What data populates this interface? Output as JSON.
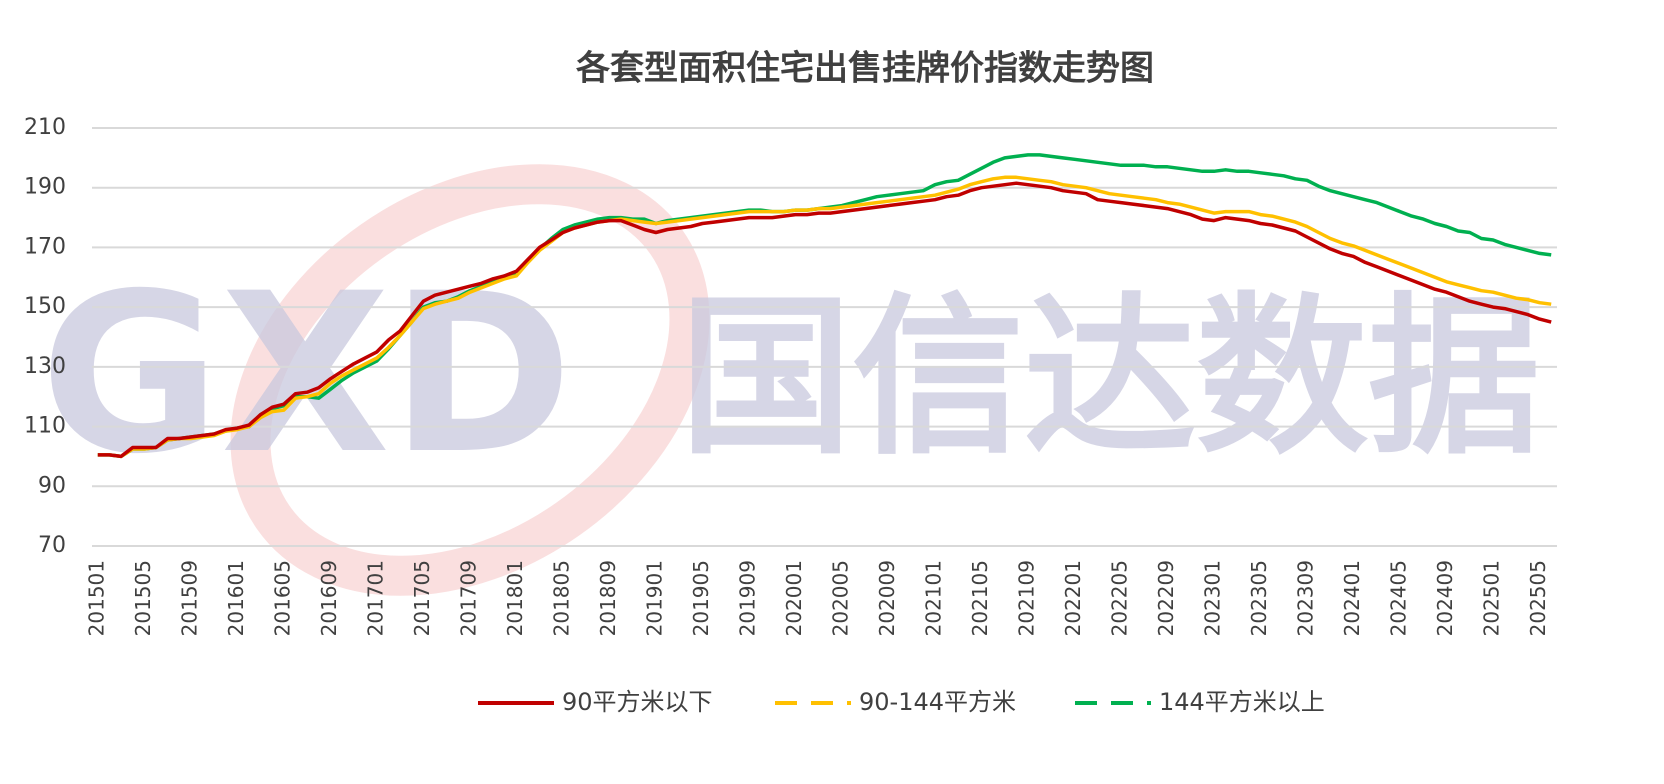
{
  "chart_data": {
    "type": "line",
    "title": "各套型面积住宅出售挂牌价指数走势图",
    "watermark": [
      "GXD",
      "国信达数据"
    ],
    "categories": [
      "201501",
      null,
      null,
      null,
      "201505",
      null,
      null,
      null,
      "201509",
      null,
      null,
      null,
      "201601",
      null,
      null,
      null,
      "201605",
      null,
      null,
      null,
      "201609",
      null,
      null,
      null,
      "201701",
      null,
      null,
      null,
      "201705",
      null,
      null,
      null,
      "201709",
      null,
      null,
      null,
      "201801",
      null,
      null,
      null,
      "201805",
      null,
      null,
      null,
      "201809",
      null,
      null,
      null,
      "201901",
      null,
      null,
      null,
      "201905",
      null,
      null,
      null,
      "201909",
      null,
      null,
      null,
      "202001",
      null,
      null,
      null,
      "202005",
      null,
      null,
      null,
      "202009",
      null,
      null,
      null,
      "202101",
      null,
      null,
      null,
      "202105",
      null,
      null,
      null,
      "202109",
      null,
      null,
      null,
      "202201",
      null,
      null,
      null,
      "202205",
      null,
      null,
      null,
      "202209",
      null,
      null,
      null,
      "202301",
      null,
      null,
      null,
      "202305",
      null,
      null,
      null,
      "202309",
      null,
      null,
      null,
      "202401",
      null,
      null,
      null,
      "202405",
      null,
      null,
      null,
      "202409",
      null,
      null,
      null,
      "202501",
      null,
      null,
      null,
      "202505",
      null
    ],
    "ylim": [
      70,
      210
    ],
    "yticks": [
      70,
      90,
      110,
      130,
      150,
      170,
      190,
      210
    ],
    "grid": true,
    "legend": "bottom",
    "series": [
      {
        "name": "90平方米以下",
        "color": "#c00000",
        "values": [
          100.5,
          100.5,
          100,
          103,
          103,
          103,
          106,
          106,
          106.5,
          107,
          107.5,
          109,
          109.5,
          110.5,
          114,
          116.5,
          117.5,
          121,
          121.5,
          123,
          126,
          128.5,
          131,
          133,
          135,
          139,
          142,
          147,
          152,
          154,
          155,
          156,
          157,
          158,
          159.5,
          160.5,
          162,
          166,
          170,
          172.5,
          175,
          176.5,
          177.5,
          178.5,
          179,
          179,
          177.5,
          176,
          175,
          176,
          176.5,
          177,
          178,
          178.5,
          179,
          179.5,
          180,
          180,
          180,
          180.5,
          181,
          181,
          181.5,
          181.5,
          182,
          182.5,
          183,
          183.5,
          184,
          184.5,
          185,
          185.5,
          186,
          187,
          187.5,
          189,
          190,
          190.5,
          191,
          191.5,
          191,
          190.5,
          190,
          189,
          188.5,
          188,
          186,
          185.5,
          185,
          184.5,
          184,
          183.5,
          183,
          182,
          181,
          179.5,
          179,
          180,
          179.5,
          179,
          178,
          177.5,
          176.5,
          175.5,
          173.5,
          171.5,
          169.5,
          168,
          167,
          165,
          163.5,
          162,
          160.5,
          159,
          157.5,
          156,
          155,
          153.5,
          152,
          151,
          150,
          149.5,
          148.5,
          147.5,
          146,
          145
        ]
      },
      {
        "name": "90-144平方米",
        "color": "#ffc000",
        "values": [
          100.5,
          100.5,
          100,
          102.5,
          102.5,
          103,
          105.5,
          106,
          106,
          106.5,
          107,
          108.5,
          109,
          110,
          113,
          115,
          115.5,
          119.5,
          120,
          121,
          124.5,
          127,
          129,
          131,
          133,
          136.5,
          140.5,
          145,
          149.5,
          151,
          152,
          153,
          155,
          156.5,
          158,
          159.5,
          160.5,
          165,
          169,
          172,
          175,
          176.5,
          177.5,
          178.5,
          179,
          179.5,
          179,
          178.5,
          178,
          178.5,
          179,
          179.5,
          180,
          180.5,
          181,
          181.5,
          182,
          182,
          182,
          182,
          182.5,
          182.5,
          183,
          183,
          183.5,
          184,
          184.5,
          185,
          185.5,
          186,
          186.5,
          187,
          187.5,
          188.5,
          189.5,
          191,
          192,
          193,
          193.5,
          193.5,
          193,
          192.5,
          192,
          191,
          190.5,
          190,
          189,
          188,
          187.5,
          187,
          186.5,
          186,
          185,
          184.5,
          183.5,
          182.5,
          181.5,
          182,
          182,
          182,
          181,
          180.5,
          179.5,
          178.5,
          177,
          175,
          173,
          171.5,
          170.5,
          169,
          167.5,
          166,
          164.5,
          163,
          161.5,
          160,
          158.5,
          157.5,
          156.5,
          155.5,
          155,
          154,
          153,
          152.5,
          151.5,
          151
        ]
      },
      {
        "name": "144平方米以上",
        "color": "#00b050",
        "values": [
          100.5,
          100.5,
          100,
          102.5,
          102.5,
          103,
          105.5,
          106,
          106.5,
          107,
          107.5,
          108.5,
          109.5,
          110,
          114,
          116,
          117,
          120,
          120,
          119.5,
          122.5,
          125.5,
          128,
          130,
          132,
          136,
          140.5,
          145,
          150,
          151.5,
          152,
          153.5,
          155.5,
          157,
          158.5,
          160.5,
          161,
          165.5,
          169.5,
          173,
          176,
          177.5,
          178.5,
          179.5,
          180,
          180,
          179.5,
          179.5,
          178,
          179,
          179.5,
          180,
          180.5,
          181,
          181.5,
          182,
          182.5,
          182.5,
          182,
          182,
          182.5,
          182.5,
          183,
          183.5,
          184,
          185,
          186,
          187,
          187.5,
          188,
          188.5,
          189,
          191,
          192,
          192.5,
          194.5,
          196.5,
          198.5,
          200,
          200.5,
          201,
          201,
          200.5,
          200,
          199.5,
          199,
          198.5,
          198,
          197.5,
          197.5,
          197.5,
          197,
          197,
          196.5,
          196,
          195.5,
          195.5,
          196,
          195.5,
          195.5,
          195,
          194.5,
          194,
          193,
          192.5,
          190.5,
          189,
          188,
          187,
          186,
          185,
          183.5,
          182,
          180.5,
          179.5,
          178,
          177,
          175.5,
          175,
          173,
          172.5,
          171,
          170,
          169,
          168,
          167.5
        ]
      }
    ]
  }
}
